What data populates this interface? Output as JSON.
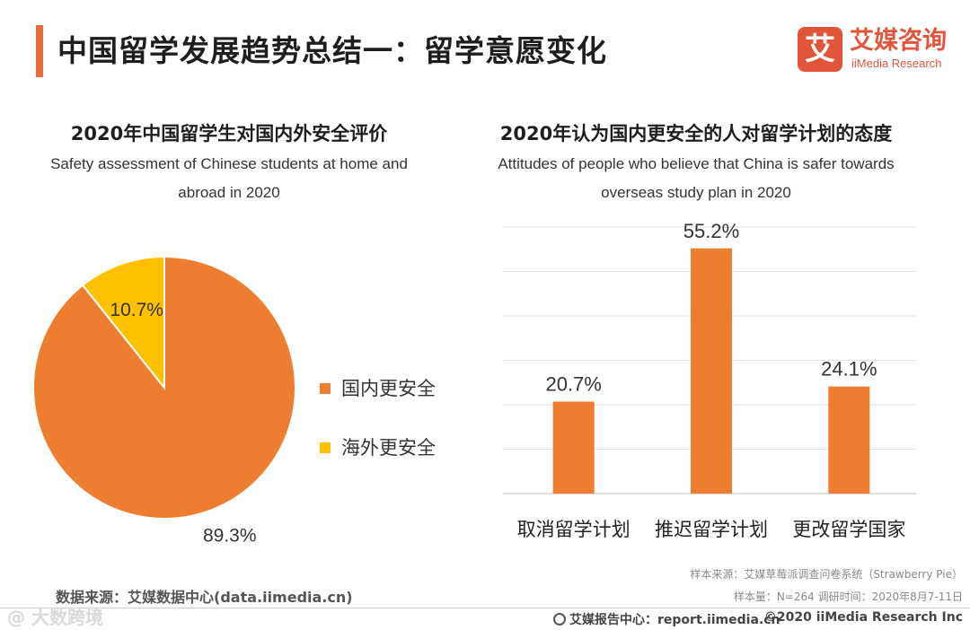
{
  "header": {
    "title": "中国留学发展趋势总结一：留学意愿变化",
    "accent_color": "#e96b3a"
  },
  "logo": {
    "mark": "艾",
    "cn": "艾媒咨询",
    "en": "iiMedia Research",
    "color": "#e2553b"
  },
  "chart_data": [
    {
      "type": "pie",
      "title": "2020年中国留学生对国内外安全评价",
      "subtitle_lines": [
        "Safety assessment of Chinese students at home and",
        "abroad in 2020"
      ],
      "categories": [
        "国内更安全",
        "海外更安全"
      ],
      "values": [
        89.3,
        10.7
      ],
      "labels": [
        "89.3%",
        "10.7%"
      ],
      "colors": [
        "#ed7d31",
        "#ffc000"
      ],
      "legend_position": "right"
    },
    {
      "type": "bar",
      "title": "2020年认为国内更安全的人对留学计划的态度",
      "subtitle_lines": [
        "Attitudes of people who believe that China is safer towards",
        "overseas study plan in 2020"
      ],
      "categories": [
        "取消留学计划",
        "推迟留学计划",
        "更改留学国家"
      ],
      "values": [
        20.7,
        55.2,
        24.1
      ],
      "labels": [
        "20.7%",
        "55.2%",
        "24.1%"
      ],
      "color": "#ed7d31",
      "ylim": [
        0,
        60
      ],
      "grid": true
    }
  ],
  "source": {
    "left": "数据来源：艾媒数据中心(data.iimedia.cn)",
    "sample_source": "样本来源：艾媒草莓派调查问卷系统（Strawberry Pie）",
    "sample_info": "样本量：N=264      调研时间：2020年8月7-11日"
  },
  "footer": {
    "report": "艾媒报告中心：report.iimedia.cn",
    "copyright": "©2020  iiMedia Research  Inc",
    "watermark": "@ 大数跨境"
  }
}
